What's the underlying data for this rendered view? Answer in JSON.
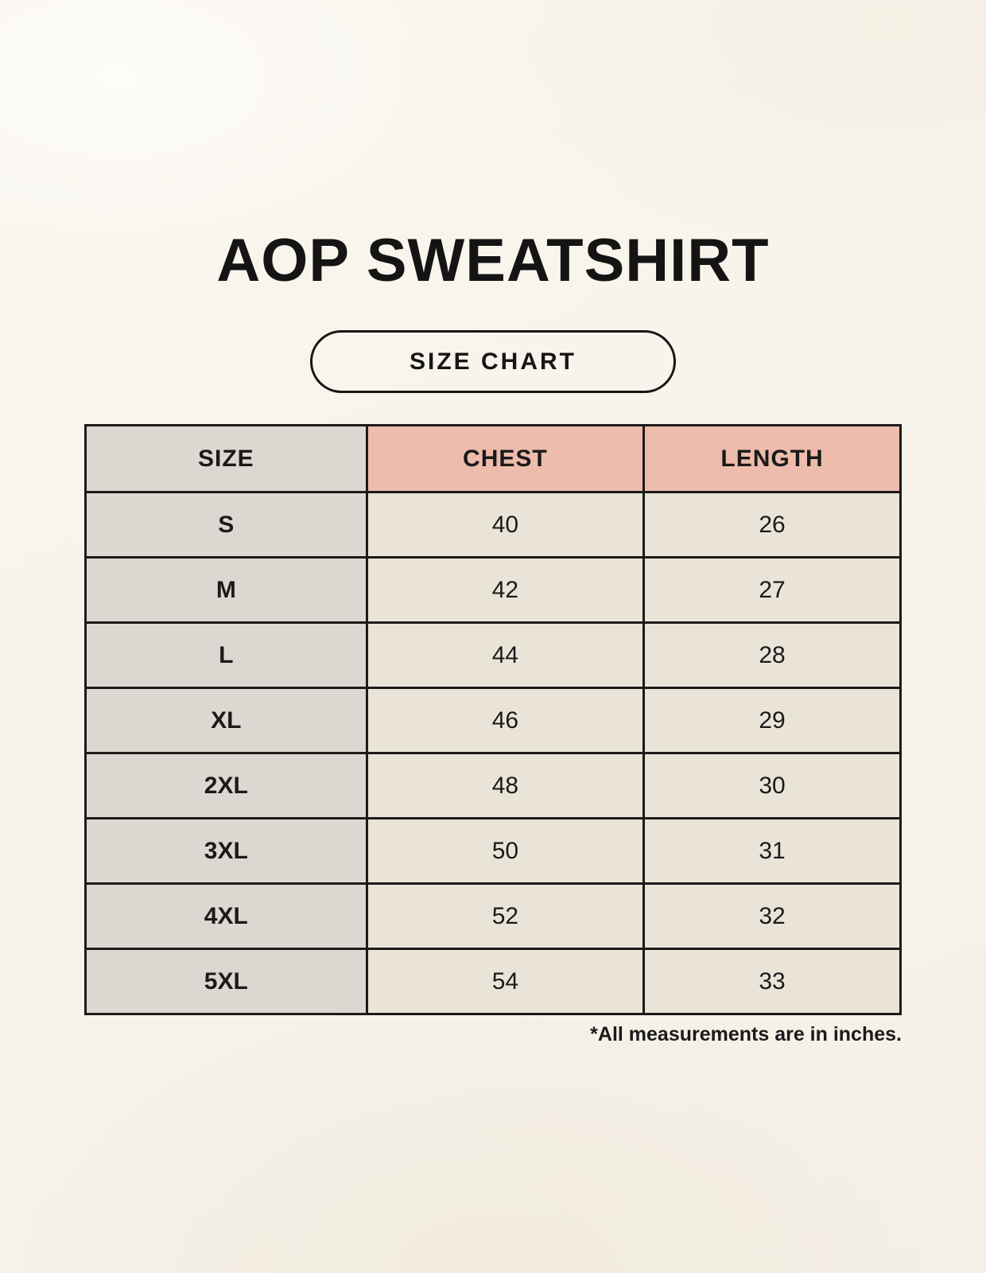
{
  "page": {
    "title": "AOP SWEATSHIRT",
    "badge": "SIZE CHART",
    "footnote": "*All measurements are in inches."
  },
  "colors": {
    "background": "#F8F4EC",
    "size_column_fill": "#DDD7D1",
    "measure_header_fill": "#EEBCAC",
    "value_cell_fill": "#EAE4D8",
    "border": "#1B1B1B",
    "text": "#1A1A1A"
  },
  "table": {
    "columns": [
      "SIZE",
      "CHEST",
      "LENGTH"
    ],
    "rows": [
      {
        "size": "S",
        "chest": "40",
        "length": "26"
      },
      {
        "size": "M",
        "chest": "42",
        "length": "27"
      },
      {
        "size": "L",
        "chest": "44",
        "length": "28"
      },
      {
        "size": "XL",
        "chest": "46",
        "length": "29"
      },
      {
        "size": "2XL",
        "chest": "48",
        "length": "30"
      },
      {
        "size": "3XL",
        "chest": "50",
        "length": "31"
      },
      {
        "size": "4XL",
        "chest": "52",
        "length": "32"
      },
      {
        "size": "5XL",
        "chest": "54",
        "length": "33"
      }
    ]
  },
  "chart_data": {
    "type": "table",
    "title": "AOP SWEATSHIRT",
    "subtitle": "SIZE CHART",
    "columns": [
      "SIZE",
      "CHEST",
      "LENGTH"
    ],
    "rows": [
      [
        "S",
        40,
        26
      ],
      [
        "M",
        42,
        27
      ],
      [
        "L",
        44,
        28
      ],
      [
        "XL",
        46,
        29
      ],
      [
        "2XL",
        48,
        30
      ],
      [
        "3XL",
        50,
        31
      ],
      [
        "4XL",
        52,
        32
      ],
      [
        "5XL",
        54,
        33
      ]
    ],
    "units": "inches",
    "note": "*All measurements are in inches."
  }
}
